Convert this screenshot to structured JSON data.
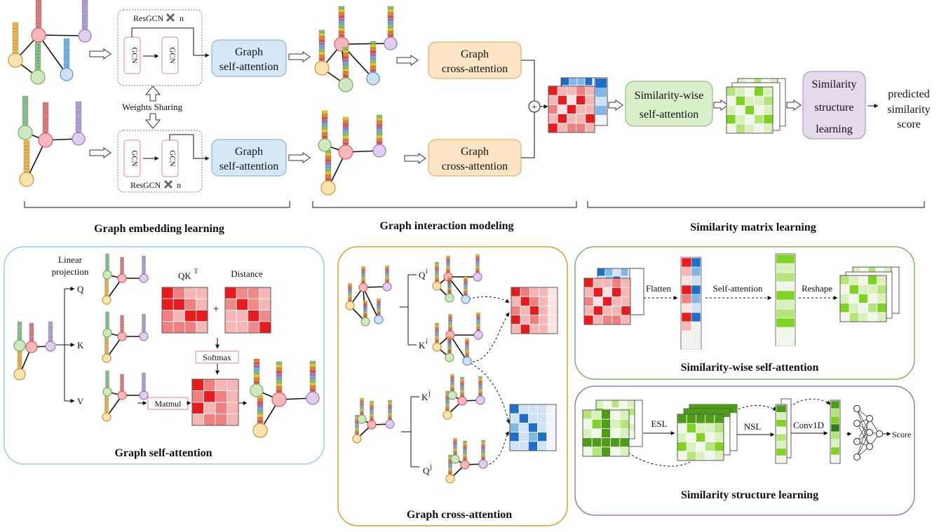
{
  "labels": {
    "resgcn_top": "ResGCN",
    "resgcn_bottom": "ResGCN",
    "resgcn_n": "n",
    "gcn": "GCN",
    "weights_sharing": "Weights Sharing",
    "graph_self_attention_line1": "Graph",
    "graph_self_attention_line2": "self-attention",
    "graph_cross_attention_line1": "Graph",
    "graph_cross_attention_line2": "cross-attention",
    "plus": "+",
    "sim_wise_line1": "Similarity-wise",
    "sim_wise_line2": "self-attention",
    "sim_struct_line1": "Similarity",
    "sim_struct_line2": "structure",
    "sim_struct_line3": "learning",
    "pred_line1": "predicted",
    "pred_line2": "similarity",
    "pred_line3": "score"
  },
  "sections": {
    "graph_embedding": "Graph embedding learning",
    "graph_interaction": "Graph interaction modeling",
    "similarity_matrix": "Similarity matrix learning"
  },
  "panels": {
    "self_attention": {
      "title": "Graph self-attention",
      "linear_line1": "Linear",
      "linear_line2": "projection",
      "q": "Q",
      "k": "K",
      "v": "V",
      "qkt": "QK",
      "qkt_sup": "T",
      "distance": "Distance",
      "plus": "+",
      "softmax": "Softmax",
      "matmul": "Matmul"
    },
    "cross_attention": {
      "title": "Graph cross-attention",
      "q": "Q",
      "k": "K",
      "sup_i": "i",
      "sup_j": "j"
    },
    "sim_wise": {
      "title": "Similarity-wise self-attention",
      "flatten": "Flatten",
      "self_attention": "Self-attention",
      "reshape": "Reshape"
    },
    "sim_struct": {
      "title": "Similarity structure learning",
      "esl": "ESL",
      "nsl": "NSL",
      "conv1d": "Conv1D",
      "score": "Score"
    }
  },
  "colors": {
    "blue_box": "#d6e8f8",
    "blue_border": "#7aa6d6",
    "orange_box": "#fde4c4",
    "orange_border": "#e3a14a",
    "green_box": "#d9efcc",
    "green_border": "#7fb36a",
    "purple_box": "#e6d9ec",
    "purple_border": "#a98bbd",
    "panel_blue": "#9fc9ea",
    "panel_orange": "#d9a12a",
    "panel_green": "#82b56a",
    "panel_purple": "#9a7bb0"
  }
}
